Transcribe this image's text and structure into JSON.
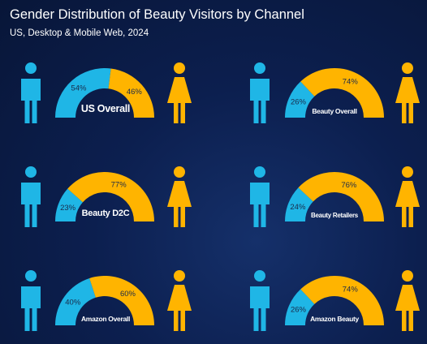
{
  "title": "Gender Distribution of Beauty Visitors by Channel",
  "subtitle": "US, Desktop & Mobile Web, 2024",
  "colors": {
    "male": "#1fb6e6",
    "female": "#ffb400",
    "background": "#0c1f4f"
  },
  "icons": {
    "male": "man-icon",
    "female": "woman-icon"
  },
  "chart_data": [
    {
      "type": "pie",
      "style": "semi-donut",
      "label": "US Overall",
      "male_label": "54%",
      "female_label": "46%",
      "male": 54,
      "female": 46
    },
    {
      "type": "pie",
      "style": "semi-donut",
      "label": "Beauty Overall",
      "male_label": "26%",
      "female_label": "74%",
      "male": 26,
      "female": 74
    },
    {
      "type": "pie",
      "style": "semi-donut",
      "label": "Beauty D2C",
      "male_label": "23%",
      "female_label": "77%",
      "male": 23,
      "female": 77
    },
    {
      "type": "pie",
      "style": "semi-donut",
      "label": "Beauty Retailers",
      "male_label": "24%",
      "female_label": "76%",
      "male": 24,
      "female": 76
    },
    {
      "type": "pie",
      "style": "semi-donut",
      "label": "Amazon Overall",
      "male_label": "40%",
      "female_label": "60%",
      "male": 40,
      "female": 60
    },
    {
      "type": "pie",
      "style": "semi-donut",
      "label": "Amazon Beauty",
      "male_label": "26%",
      "female_label": "74%",
      "male": 26,
      "female": 74
    }
  ]
}
